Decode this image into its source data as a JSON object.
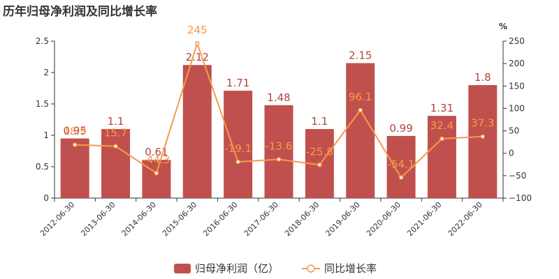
{
  "title": "历年归母净利润及同比增长率",
  "colors": {
    "bar": "#c0504d",
    "bar_label": "#b5433f",
    "line": "#f79a4b",
    "line_label": "#f79a4b",
    "axis": "#333333"
  },
  "chart_data": {
    "type": "bar",
    "categories": [
      "2012-06-30",
      "2013-06-30",
      "2014-06-30",
      "2015-06-30",
      "2016-06-30",
      "2017-06-30",
      "2018-06-30",
      "2019-06-30",
      "2020-06-30",
      "2021-06-30",
      "2022-06-30"
    ],
    "series": [
      {
        "name": "归母净利润（亿）",
        "type": "bar",
        "axis": "left",
        "values": [
          0.95,
          1.1,
          0.61,
          2.12,
          1.71,
          1.48,
          1.1,
          2.15,
          0.99,
          1.31,
          1.8
        ],
        "labels": [
          "0.95",
          "1.1",
          "0.61",
          "2.12",
          "1.71",
          "1.48",
          "1.1",
          "2.15",
          "0.99",
          "1.31",
          "1.8"
        ]
      },
      {
        "name": "同比增长率",
        "type": "line",
        "axis": "right",
        "values": [
          18.9,
          15.7,
          -44.3,
          245,
          -19.1,
          -13.6,
          -25.8,
          96.1,
          -54.1,
          32.4,
          37.3
        ],
        "labels": [
          "18.9",
          "15.7",
          "-44.3",
          "245",
          "-19.1",
          "-13.6",
          "-25.8",
          "96.1",
          "-54.1",
          "32.4",
          "37.3"
        ]
      }
    ],
    "y_left": {
      "ylim": [
        0,
        2.5
      ],
      "ticks": [
        0,
        0.5,
        1,
        1.5,
        2,
        2.5
      ],
      "tick_labels": [
        "0",
        "0.5",
        "1",
        "1.5",
        "2",
        "2.5"
      ]
    },
    "y_right": {
      "unit": "%",
      "ylim": [
        -100,
        250
      ],
      "ticks": [
        -100,
        -50,
        0,
        50,
        100,
        150,
        200,
        250
      ],
      "tick_labels": [
        "−100",
        "−50",
        "0",
        "50",
        "100",
        "150",
        "200",
        "250"
      ]
    },
    "grid": false,
    "legend": {
      "position": "bottom-center",
      "entries": [
        "归母净利润（亿）",
        "同比增长率"
      ]
    }
  }
}
